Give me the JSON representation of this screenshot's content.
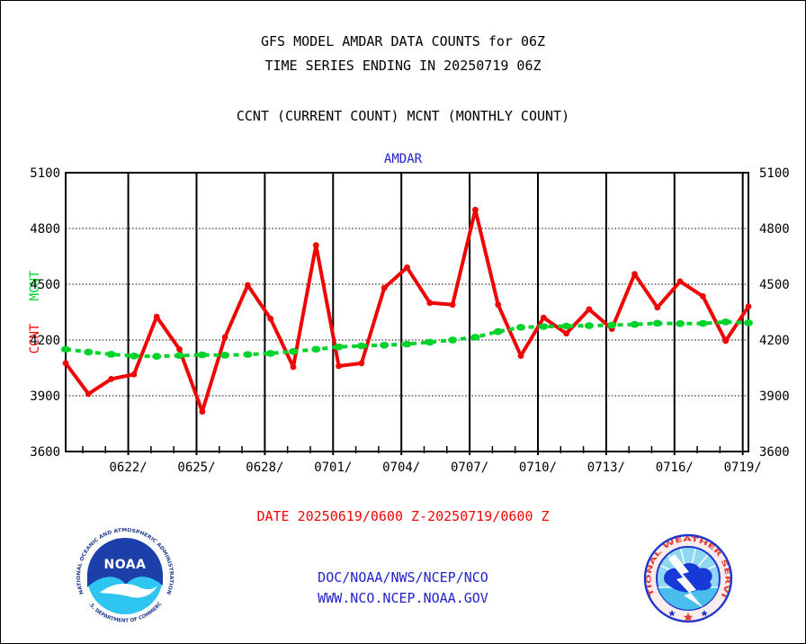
{
  "header": {
    "line1": "GFS MODEL AMDAR DATA COUNTS for 06Z",
    "line2": "TIME SERIES ENDING IN 20250719 06Z",
    "legend_note": "CCNT (CURRENT COUNT) MCNT (MONTHLY COUNT)"
  },
  "chart_data": {
    "type": "line",
    "title": "AMDAR",
    "x": [
      "0619",
      "0620",
      "0621",
      "0622",
      "0623",
      "0624",
      "0625",
      "0626",
      "0627",
      "0628",
      "0629",
      "0630",
      "0701",
      "0702",
      "0703",
      "0704",
      "0705",
      "0706",
      "0707",
      "0708",
      "0709",
      "0710",
      "0711",
      "0712",
      "0713",
      "0714",
      "0715",
      "0716",
      "0717",
      "0718",
      "0719"
    ],
    "x_tick_labels": [
      "0622/",
      "0625/",
      "0628/",
      "0701/",
      "0704/",
      "0707/",
      "0710/",
      "0713/",
      "0716/",
      "0719/"
    ],
    "ylim": [
      3600,
      5100
    ],
    "y_ticks": [
      3600,
      3900,
      4200,
      4500,
      4800,
      5100
    ],
    "grid": {
      "vertical_every_days": 3,
      "horizontal_dotted_at": [
        3900,
        4200,
        4500,
        4800
      ]
    },
    "legend_position": "left-axis-rotated",
    "series": [
      {
        "name": "CCNT",
        "color": "#f00505",
        "style": "solid",
        "marker": "dot",
        "values": [
          4075,
          3910,
          3990,
          4015,
          4325,
          4150,
          3815,
          4215,
          4495,
          4315,
          4055,
          4710,
          4060,
          4075,
          4480,
          4590,
          4400,
          4390,
          4900,
          4390,
          4115,
          4320,
          4235,
          4365,
          4260,
          4555,
          4375,
          4515,
          4435,
          4195,
          4380
        ]
      },
      {
        "name": "MCNT",
        "color": "#00d22c",
        "style": "dashed",
        "marker": "ellipse",
        "values": [
          4150,
          4135,
          4123,
          4114,
          4112,
          4116,
          4120,
          4118,
          4122,
          4128,
          4138,
          4150,
          4163,
          4168,
          4172,
          4178,
          4188,
          4200,
          4215,
          4245,
          4268,
          4272,
          4275,
          4277,
          4280,
          4284,
          4290,
          4288,
          4289,
          4297,
          4292
        ]
      }
    ]
  },
  "footer": {
    "date_range": "DATE 20250619/0600 Z-20250719/0600 Z",
    "org": "DOC/NOAA/NWS/NCEP/NCO",
    "url": "WWW.NCO.NCEP.NOAA.GOV"
  },
  "logos": {
    "noaa": {
      "ring_top": "NATIONAL OCEANIC AND ATMOSPHERIC ADMINISTRATION",
      "ring_bottom": "U.S. DEPARTMENT OF COMMERCE",
      "acronym": "NOAA"
    },
    "nws": {
      "ring": "NATIONAL WEATHER SERVICE"
    }
  },
  "colors": {
    "ccnt_red": "#f00505",
    "mcnt_green": "#00d22c",
    "link_blue": "#2222cc",
    "axis_black": "#000000"
  }
}
